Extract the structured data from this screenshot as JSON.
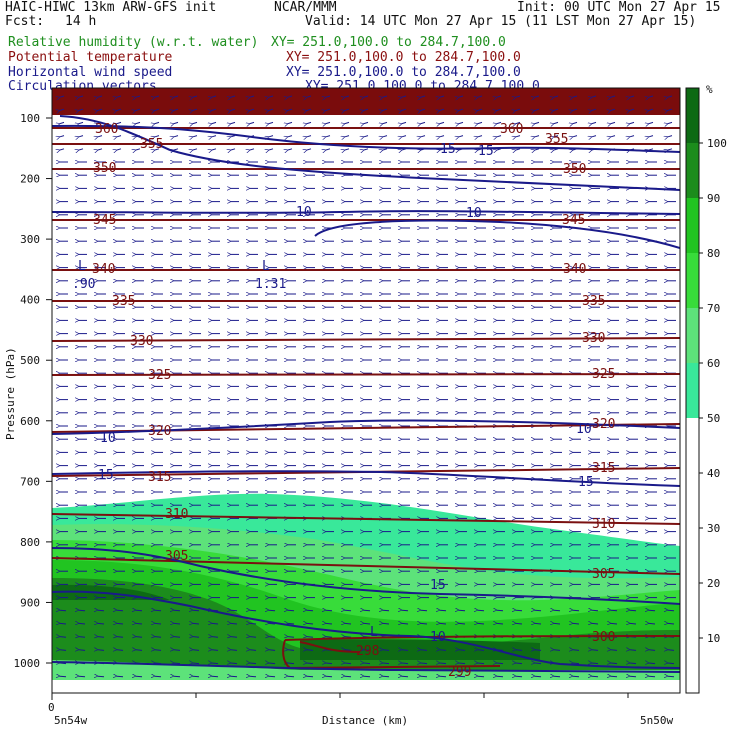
{
  "header": {
    "model": "HAIC-HIWC 13km ARW-GFS init",
    "org": "NCAR/MMM",
    "init": "Init: 00 UTC Mon 27 Apr 15",
    "fcst_label": "Fcst:",
    "fcst_value": "14 h",
    "valid": "Valid: 14 UTC Mon 27 Apr 15 (11 LST Mon 27 Apr 15)"
  },
  "legend": [
    {
      "label": "Relative humidity (w.r.t. water)",
      "xy": "XY= 251.0,100.0 to 284.7,100.0",
      "color": "#1f8f1f"
    },
    {
      "label": "Potential temperature",
      "xy": "XY= 251.0,100.0 to 284.7,100.0",
      "color": "#8a0f0f"
    },
    {
      "label": "Horizontal wind speed",
      "xy": "XY= 251.0,100.0 to 284.7,100.0",
      "color": "#1a1a8a"
    },
    {
      "label": "Circulation vectors",
      "xy": "XY= 251.0,100.0 to 284.7,100.0",
      "color": "#1a1a8a"
    }
  ],
  "chart_data": {
    "type": "heatmap",
    "title": "",
    "xlabel": "Distance (km)",
    "ylabel": "Pressure (hPa)",
    "x_tick_label": "0",
    "x_end_labels": [
      "5n54w",
      "5n50w"
    ],
    "y_ticks": [
      100,
      200,
      300,
      400,
      500,
      600,
      700,
      800,
      900,
      1000
    ],
    "y_tick_labels": [
      "100",
      "200",
      "300",
      "400",
      "500",
      "600",
      "700",
      "800",
      "900",
      "1000"
    ],
    "ylim": [
      1050,
      80
    ],
    "colorbar": {
      "unit": "%",
      "levels": [
        10,
        20,
        30,
        40,
        50,
        60,
        70,
        80,
        90,
        100
      ],
      "labels": [
        "10",
        "20",
        "30",
        "40",
        "50",
        "60",
        "70",
        "80",
        "90",
        "100"
      ],
      "colors": [
        "#ffffff",
        "#ffffff",
        "#ffffff",
        "#ffffff",
        "#ffffff",
        "#39e89a",
        "#5de27a",
        "#38dc3a",
        "#21c421",
        "#1c8c1c",
        "#0d6a14",
        "#ff8080"
      ]
    },
    "theta_contours": [
      {
        "value": "360",
        "label_positions": [
          "left",
          "right"
        ]
      },
      {
        "value": "355",
        "label_positions": [
          "left",
          "right"
        ]
      },
      {
        "value": "350",
        "label_positions": [
          "left",
          "right"
        ]
      },
      {
        "value": "345",
        "label_positions": [
          "left",
          "right"
        ]
      },
      {
        "value": "340",
        "label_positions": [
          "left",
          "right"
        ]
      },
      {
        "value": "335",
        "label_positions": [
          "left",
          "right"
        ]
      },
      {
        "value": "330",
        "label_positions": [
          "left",
          "right"
        ]
      },
      {
        "value": "325",
        "label_positions": [
          "left",
          "right"
        ]
      },
      {
        "value": "320",
        "label_positions": [
          "left",
          "right"
        ]
      },
      {
        "value": "315",
        "label_positions": [
          "left",
          "right"
        ]
      },
      {
        "value": "310",
        "label_positions": [
          "left",
          "right"
        ]
      },
      {
        "value": "305",
        "label_positions": [
          "left",
          "right"
        ]
      },
      {
        "value": "300",
        "label_positions": [
          "right"
        ]
      },
      {
        "value": "299",
        "label_positions": [
          "center"
        ]
      },
      {
        "value": "298",
        "label_positions": [
          "center"
        ]
      }
    ],
    "wind_labels": [
      "15",
      "15",
      "10",
      "10",
      "10",
      "10",
      "15",
      "15",
      "15",
      "10"
    ],
    "extrema_labels": [
      {
        "symbol": "L",
        "value": ".90"
      },
      {
        "symbol": "L",
        "value": "1.31"
      },
      {
        "symbol": "L",
        "value": ""
      }
    ],
    "grid": false,
    "legend_placement": "top-left"
  }
}
